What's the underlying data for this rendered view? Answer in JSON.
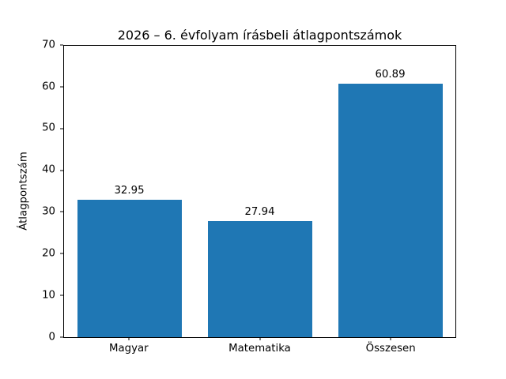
{
  "chart_data": {
    "type": "bar",
    "title": "2026 – 6. évfolyam írásbeli átlagpontszámok",
    "xlabel": "",
    "ylabel": "Átlagpontszám",
    "categories": [
      "Magyar",
      "Matematika",
      "Összesen"
    ],
    "values": [
      32.95,
      27.94,
      60.89
    ],
    "value_labels": [
      "32.95",
      "27.94",
      "60.89"
    ],
    "ylim": [
      0,
      70
    ],
    "yticks": [
      0,
      10,
      20,
      30,
      40,
      50,
      60,
      70
    ],
    "bar_color": "#1f77b4",
    "bar_width_fraction": 0.8,
    "grid": false,
    "legend": null,
    "background_color": "#ffffff",
    "spine_color": "#000000",
    "text_color": "#000000"
  }
}
